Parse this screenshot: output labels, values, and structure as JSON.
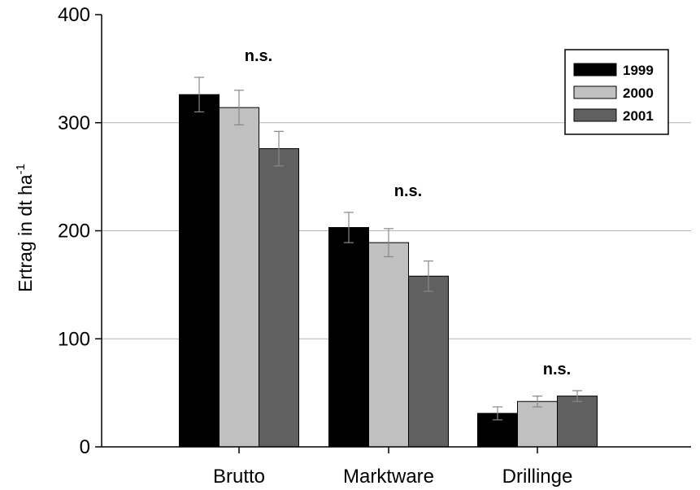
{
  "chart_data": {
    "type": "bar",
    "ylabel": "Ertrag in dt ha",
    "ylabel_superscript": "-1",
    "ylim": [
      0,
      400
    ],
    "yticks": [
      "0",
      "100",
      "200",
      "300",
      "400"
    ],
    "grid": "horizontal",
    "legend_position": "top-right",
    "categories": [
      "Brutto",
      "Marktware",
      "Drillinge"
    ],
    "annotations": [
      "n.s.",
      "n.s.",
      "n.s."
    ],
    "series": [
      {
        "name": "1999",
        "color": "#000000",
        "values": [
          326,
          203,
          31
        ],
        "errors": [
          16,
          14,
          6
        ]
      },
      {
        "name": "2000",
        "color": "#c0c0c0",
        "values": [
          314,
          189,
          42
        ],
        "errors": [
          16,
          13,
          5
        ]
      },
      {
        "name": "2001",
        "color": "#606060",
        "values": [
          276,
          158,
          47
        ],
        "errors": [
          16,
          14,
          5
        ]
      }
    ]
  }
}
